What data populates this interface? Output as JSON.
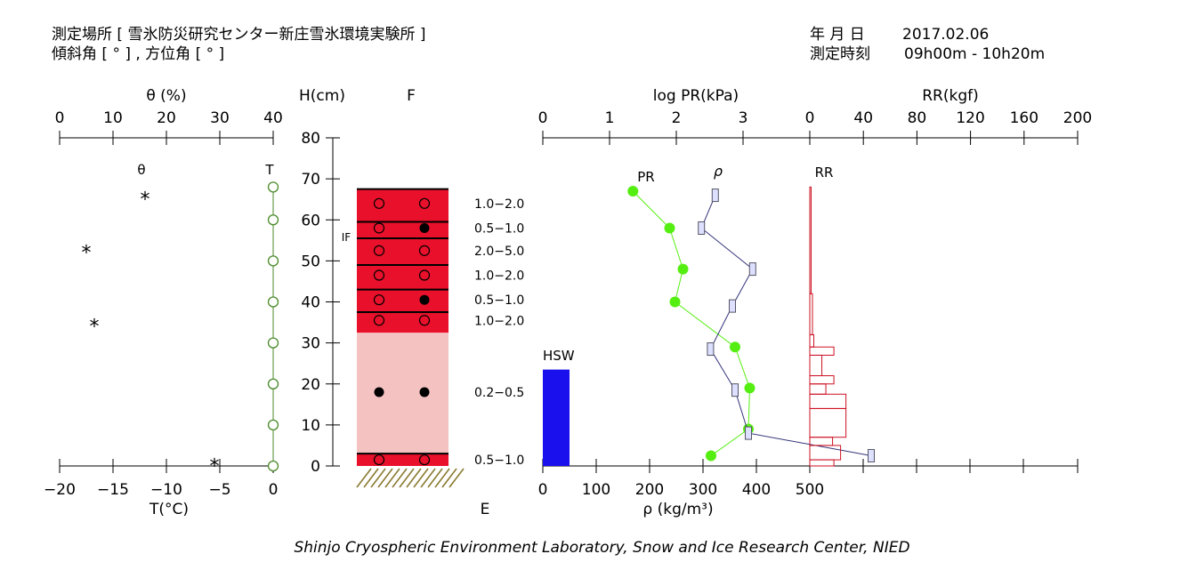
{
  "header": {
    "site_label": "測定場所 [ 雪氷防災研究センター新庄雪氷環境実験所 ]",
    "angle_label": "傾斜角 [ ° ] , 方位角 [ ° ]",
    "date_label": "年 月 日",
    "date_value": "2017.02.06",
    "time_label": "測定時刻",
    "time_value": "09h00m - 10h20m"
  },
  "footer": "Shinjo Cryospheric Environment Laboratory, Snow and Ice Research Center, NIED",
  "chart_data": [
    {
      "type": "scatter",
      "panel": "water-content-and-temperature",
      "top_axis": {
        "label": "θ (%)",
        "ticks": [
          "0",
          "10",
          "20",
          "30",
          "40"
        ],
        "range": [
          0,
          40
        ]
      },
      "bottom_axis": {
        "label": "T(°C)",
        "ticks": [
          "−20",
          "−15",
          "−10",
          "−5",
          "0"
        ],
        "range": [
          -20,
          0
        ]
      },
      "series": [
        {
          "name": "θ",
          "marker": "*",
          "points": [
            {
              "value": 16,
              "h": 66
            },
            {
              "value": 5,
              "h": 53
            },
            {
              "value": 6.5,
              "h": 35
            },
            {
              "value": -5.5,
              "h": 1,
              "unit": "°C"
            }
          ]
        },
        {
          "name": "T",
          "marker": "open-circle",
          "color": "#4a8a2a",
          "points": [
            {
              "t": 0,
              "h": 68
            },
            {
              "t": 0,
              "h": 60
            },
            {
              "t": 0,
              "h": 50
            },
            {
              "t": 0,
              "h": 40
            },
            {
              "t": 0,
              "h": 30
            },
            {
              "t": 0,
              "h": 20
            },
            {
              "t": 0,
              "h": 10
            },
            {
              "t": 0,
              "h": 0
            }
          ]
        }
      ]
    },
    {
      "type": "table",
      "panel": "snow-stratigraphy",
      "y_axis": {
        "label": "H(cm)",
        "ticks": [
          "0",
          "10",
          "20",
          "30",
          "40",
          "50",
          "60",
          "70",
          "80"
        ],
        "range": [
          0,
          80
        ]
      },
      "column_label": "F",
      "bottom_label": "E",
      "if_label": "IF",
      "layers": [
        {
          "bottom": 0,
          "top": 3,
          "color": "#e8102a"
        },
        {
          "bottom": 3,
          "top": 32.5,
          "color": "#f5c2c2"
        },
        {
          "bottom": 32.5,
          "top": 37.5,
          "color": "#e8102a"
        },
        {
          "bottom": 37.5,
          "top": 43,
          "color": "#e8102a"
        },
        {
          "bottom": 43,
          "top": 49,
          "color": "#e8102a"
        },
        {
          "bottom": 49,
          "top": 55.5,
          "color": "#e8102a"
        },
        {
          "bottom": 55.5,
          "top": 59.5,
          "color": "#e8102a"
        },
        {
          "bottom": 59.5,
          "top": 67.5,
          "color": "#e8102a"
        }
      ],
      "grain_marks": [
        {
          "h": 1.5,
          "a": "open",
          "b": "open"
        },
        {
          "h": 18,
          "a": "filled",
          "b": "filled"
        },
        {
          "h": 35.5,
          "a": "open",
          "b": "open"
        },
        {
          "h": 40.5,
          "a": "open",
          "b": "filled"
        },
        {
          "h": 46.5,
          "a": "open",
          "b": "open"
        },
        {
          "h": 52.5,
          "a": "open",
          "b": "open"
        },
        {
          "h": 58,
          "a": "open",
          "b": "filled"
        },
        {
          "h": 64,
          "a": "open",
          "b": "open"
        }
      ],
      "grain_sizes": [
        {
          "h": 64,
          "text": "1.0−2.0"
        },
        {
          "h": 58,
          "text": "0.5−1.0"
        },
        {
          "h": 52.5,
          "text": "2.0−5.0"
        },
        {
          "h": 46.5,
          "text": "1.0−2.0"
        },
        {
          "h": 40.5,
          "text": "0.5−1.0"
        },
        {
          "h": 35.5,
          "text": "1.0−2.0"
        },
        {
          "h": 18,
          "text": "0.2−0.5"
        },
        {
          "h": 1.5,
          "text": "0.5−1.0"
        }
      ]
    },
    {
      "type": "line",
      "panel": "hardness-and-density",
      "top_axis": {
        "label": "log PR(kPa)",
        "ticks": [
          "0",
          "1",
          "2",
          "3"
        ],
        "range": [
          0,
          4
        ]
      },
      "bottom_axis": {
        "label": "ρ (kg/m³)",
        "ticks": [
          "0",
          "100",
          "200",
          "300",
          "400",
          "500"
        ],
        "range": [
          0,
          500
        ]
      },
      "hsw_label": "HSW",
      "hsw_value_kg_m3": 50,
      "hsw_height_cm": 23.5,
      "series": [
        {
          "name": "PR",
          "color": "#55ee11",
          "points": [
            {
              "h": 67,
              "x": 1.35
            },
            {
              "h": 58,
              "x": 1.9
            },
            {
              "h": 48,
              "x": 2.1
            },
            {
              "h": 40,
              "x": 1.98
            },
            {
              "h": 29,
              "x": 2.88
            },
            {
              "h": 19,
              "x": 3.1
            },
            {
              "h": 9,
              "x": 3.08
            },
            {
              "h": 2.5,
              "x": 2.52
            }
          ]
        },
        {
          "name": "ρ",
          "color": "#33337a",
          "points": [
            {
              "h": 66,
              "x": 323
            },
            {
              "h": 58,
              "x": 297
            },
            {
              "h": 48,
              "x": 393
            },
            {
              "h": 39,
              "x": 355
            },
            {
              "h": 28.5,
              "x": 314
            },
            {
              "h": 18.5,
              "x": 360
            },
            {
              "h": 8,
              "x": 385
            },
            {
              "h": 2.5,
              "x": 615
            }
          ]
        }
      ]
    },
    {
      "type": "bar",
      "panel": "ram-hardness",
      "top_axis": {
        "label": "RR(kgf)",
        "ticks": [
          "0",
          "40",
          "80",
          "120",
          "160",
          "200"
        ],
        "range": [
          0,
          200
        ]
      },
      "series": [
        {
          "name": "RR",
          "color": "#cc1122",
          "steps": [
            {
              "bottom": 0,
              "top": 1.5,
              "value": 18
            },
            {
              "bottom": 1.5,
              "top": 5,
              "value": 23
            },
            {
              "bottom": 5,
              "top": 7,
              "value": 17
            },
            {
              "bottom": 7,
              "top": 14,
              "value": 27
            },
            {
              "bottom": 14,
              "top": 17.5,
              "value": 27
            },
            {
              "bottom": 17.5,
              "top": 20,
              "value": 12
            },
            {
              "bottom": 20,
              "top": 22,
              "value": 18
            },
            {
              "bottom": 22,
              "top": 27,
              "value": 9
            },
            {
              "bottom": 27,
              "top": 29,
              "value": 18
            },
            {
              "bottom": 29,
              "top": 32,
              "value": 3
            },
            {
              "bottom": 32,
              "top": 42,
              "value": 2
            },
            {
              "bottom": 42,
              "top": 68,
              "value": 1
            }
          ]
        }
      ]
    }
  ]
}
